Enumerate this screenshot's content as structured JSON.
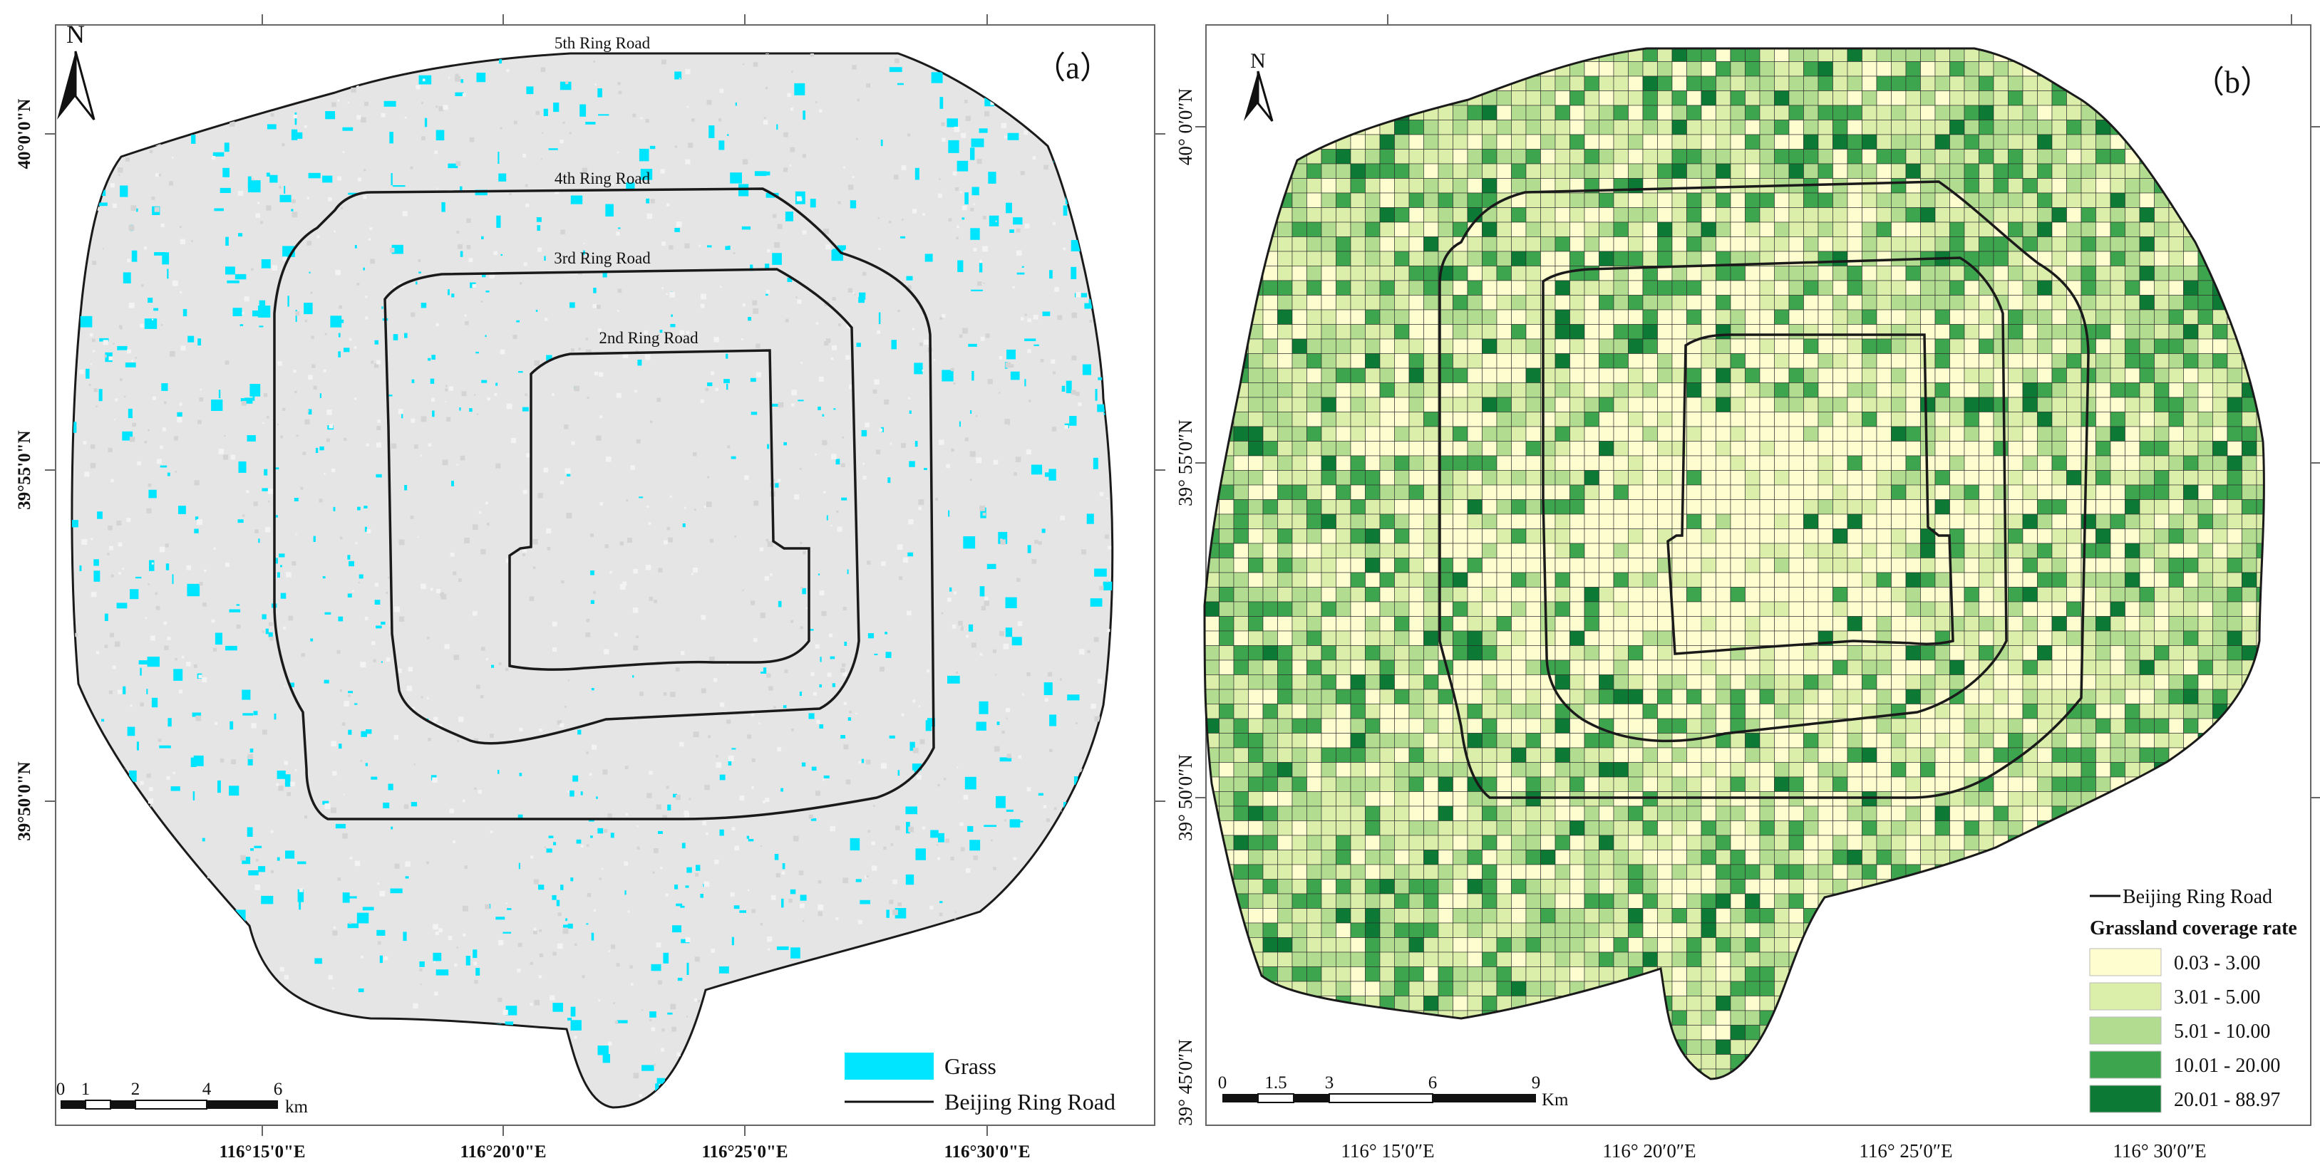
{
  "panel_a": {
    "label": "（a）",
    "north": "N",
    "ring_labels": {
      "r5": "5th Ring Road",
      "r4": "4th Ring Road",
      "r3": "3rd Ring Road",
      "r2": "2nd Ring Road"
    },
    "lon_ticks": [
      "116°15'0\"E",
      "116°20'0\"E",
      "116°25'0\"E",
      "116°30'0\"E"
    ],
    "lat_ticks": [
      "40°0'0\"N",
      "39°55'0\"N",
      "39°50'0\"N"
    ],
    "scale": {
      "labels": [
        "0",
        "1",
        "2",
        "4",
        "6"
      ],
      "unit": "km"
    },
    "legend": {
      "grass": "Grass",
      "ring": "Beijing Ring Road"
    },
    "colors": {
      "grass": "#00e5ff",
      "background": "#e6e6e6",
      "ring": "#1a1a1a"
    }
  },
  "panel_b": {
    "label": "（b）",
    "north": "N",
    "lon_ticks": [
      "116° 15′0″E",
      "116° 20′0″E",
      "116° 25′0″E",
      "116° 30′0″E"
    ],
    "lat_ticks": [
      "40° 0′0″N",
      "39° 55′0″N",
      "39° 50′0″N",
      "39° 45′0″N"
    ],
    "scale": {
      "labels": [
        "0",
        "1.5",
        "3",
        "6",
        "9"
      ],
      "unit": "Km"
    },
    "legend": {
      "ring": "Beijing Ring Road",
      "title": "Grassland coverage rate",
      "classes": [
        {
          "label": "0.03 - 3.00",
          "color": "#fdfdcf"
        },
        {
          "label": "3.01 - 5.00",
          "color": "#dcefaa"
        },
        {
          "label": "5.01 - 10.00",
          "color": "#b2dc90"
        },
        {
          "label": "10.01 - 20.00",
          "color": "#3ea54f"
        },
        {
          "label": "20.01 - 88.97",
          "color": "#0c7a35"
        }
      ]
    }
  }
}
